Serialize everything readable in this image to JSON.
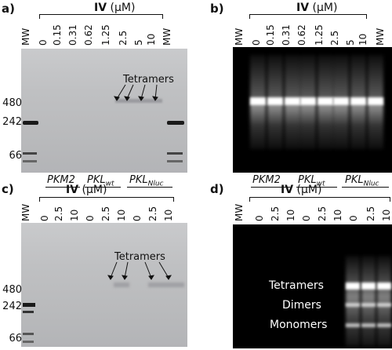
{
  "panels": {
    "a": {
      "letter": "a)",
      "header": "IV",
      "unit": "(µM)",
      "lanes": [
        "MW",
        "0",
        "0.15",
        "0.31",
        "0.62",
        "1.25",
        "2.5",
        "5",
        "10",
        "MW"
      ],
      "markers": [
        "480",
        "242",
        "66"
      ],
      "annotation": "Tetramers"
    },
    "b": {
      "letter": "b)",
      "header": "IV",
      "unit": "(µM)",
      "lanes": [
        "MW",
        "0",
        "0.15",
        "0.31",
        "0.62",
        "1.25",
        "2.5",
        "5",
        "10",
        "MW"
      ]
    },
    "c": {
      "letter": "c)",
      "header": "IV",
      "unit": "(µM)",
      "groups": [
        "PKM2",
        "PKL",
        "PKL"
      ],
      "group_subs": [
        "",
        "wt",
        "Nluc"
      ],
      "lanes": [
        "MW",
        "0",
        "2.5",
        "10",
        "0",
        "2.5",
        "10",
        "0",
        "2.5",
        "10"
      ],
      "markers": [
        "480",
        "242",
        "66"
      ],
      "annotation": "Tetramers"
    },
    "d": {
      "letter": "d)",
      "header": "IV",
      "unit": "(µM)",
      "groups": [
        "PKM2",
        "PKL",
        "PKL"
      ],
      "group_subs": [
        "",
        "wt",
        "Nluc"
      ],
      "lanes": [
        "MW",
        "0",
        "2.5",
        "10",
        "0",
        "2.5",
        "10",
        "0",
        "2.5",
        "10"
      ],
      "annotations": [
        "Tetramers",
        "Dimers",
        "Monomers"
      ]
    }
  },
  "colors": {
    "gel_bg": "#c0c1c3",
    "fluor_bg": "#000000",
    "fluor_band": "#ffffff"
  }
}
